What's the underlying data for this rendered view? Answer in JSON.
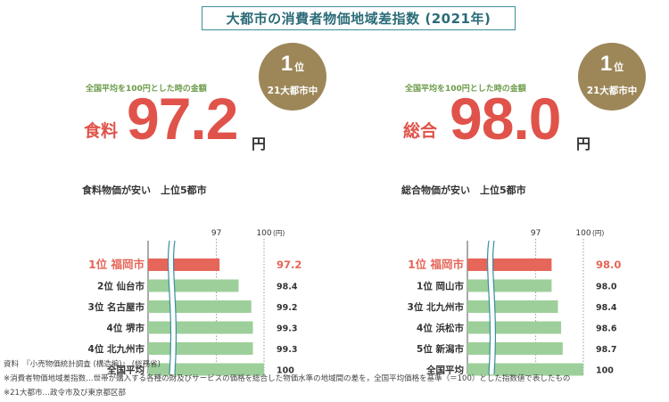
{
  "header": {
    "title": "大都市の消費者物価地域差指数 (2021年)"
  },
  "panels": [
    {
      "badge": {
        "rank": "1",
        "rank_unit": "位",
        "note": "21大都市中"
      },
      "sub_note": "全国平均を100円とした時の金額",
      "kpi_label": "食料",
      "kpi_value": "97.2",
      "kpi_unit": "円",
      "chart_title": "食料物価が安い　上位5都市"
    },
    {
      "badge": {
        "rank": "1",
        "rank_unit": "位",
        "note": "21大都市中"
      },
      "sub_note": "全国平均を100円とした時の金額",
      "kpi_label": "総合",
      "kpi_value": "98.0",
      "kpi_unit": "円",
      "chart_title": "総合物価が安い　上位5都市"
    }
  ],
  "chart_data": [
    {
      "type": "bar",
      "orientation": "horizontal",
      "title": "食料物価が安い　上位5都市",
      "categories": [
        "1位 福岡市",
        "2位 仙台市",
        "3位 名古屋市",
        "4位 堺市",
        "4位 北九州市",
        "全国平均"
      ],
      "values": [
        97.2,
        98.4,
        99.2,
        99.3,
        99.3,
        100
      ],
      "value_labels": [
        "97.2",
        "98.4",
        "99.2",
        "99.3",
        "99.3",
        "100"
      ],
      "ref_lines": [
        {
          "value": 97,
          "label": "97"
        },
        {
          "value": 100,
          "label": "100"
        }
      ],
      "unit_label": "(円)",
      "axis_break": true,
      "xlim": [
        92.7,
        100
      ],
      "highlight_color": "#e66659",
      "bar_color": "#9dcf9a"
    },
    {
      "type": "bar",
      "orientation": "horizontal",
      "title": "総合物価が安い　上位5都市",
      "categories": [
        "1位 福岡市",
        "1位 岡山市",
        "3位 北九州市",
        "4位 浜松市",
        "5位 新潟市",
        "全国平均"
      ],
      "values": [
        98.0,
        98.0,
        98.4,
        98.6,
        98.7,
        100
      ],
      "value_labels": [
        "98.0",
        "98.0",
        "98.4",
        "98.6",
        "98.7",
        "100"
      ],
      "ref_lines": [
        {
          "value": 97,
          "label": "97"
        },
        {
          "value": 100,
          "label": "100"
        }
      ],
      "unit_label": "(円)",
      "axis_break": true,
      "xlim": [
        92.7,
        100
      ],
      "highlight_color": "#e66659",
      "bar_color": "#9dcf9a"
    }
  ],
  "footnotes": [
    "資料　『小売物価統計調査 (構造編)』 (総務省)",
    "※消費者物価地域差指数…世帯が購入する各種の財及びサービスの価格を総合した物価水準の地域間の差を，全国平均価格を基準（＝100）とした指数値で表したもの",
    "※21大都市…政令市及び東京都区部"
  ]
}
